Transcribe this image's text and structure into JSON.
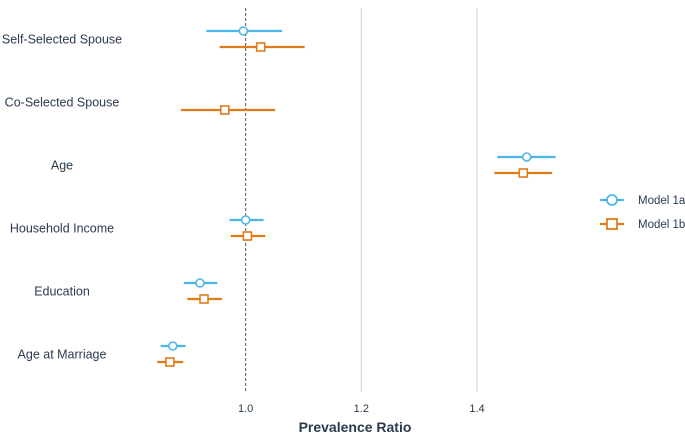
{
  "chart_data": {
    "type": "forest",
    "xlabel": "Prevalence Ratio",
    "xticks": [
      1.0,
      1.2,
      1.4
    ],
    "xtick_labels": [
      "1.0",
      "1.2",
      "1.4"
    ],
    "xlim": [
      0.8,
      1.63
    ],
    "reference_line": 1.0,
    "grid": "vertical major gridlines",
    "legend_placement": "right",
    "categories": [
      "Self-Selected Spouse",
      "Co-Selected Spouse",
      "Age",
      "Household Income",
      "Education",
      "Age at Marriage"
    ],
    "series": [
      {
        "name": "Model 1a",
        "color": "#4db6e8",
        "marker": "circle",
        "points": [
          {
            "category": "Self-Selected Spouse",
            "estimate": 0.996,
            "lower": 0.932,
            "upper": 1.063
          },
          {
            "category": "Co-Selected Spouse",
            "estimate": null,
            "lower": null,
            "upper": null
          },
          {
            "category": "Age",
            "estimate": 1.486,
            "lower": 1.435,
            "upper": 1.536
          },
          {
            "category": "Household Income",
            "estimate": 1.0,
            "lower": 0.972,
            "upper": 1.031
          },
          {
            "category": "Education",
            "estimate": 0.921,
            "lower": 0.893,
            "upper": 0.951
          },
          {
            "category": "Age at Marriage",
            "estimate": 0.874,
            "lower": 0.853,
            "upper": 0.896
          }
        ]
      },
      {
        "name": "Model 1b",
        "color": "#e07b1a",
        "marker": "square",
        "points": [
          {
            "category": "Self-Selected Spouse",
            "estimate": 1.026,
            "lower": 0.955,
            "upper": 1.102
          },
          {
            "category": "Co-Selected Spouse",
            "estimate": 0.964,
            "lower": 0.888,
            "upper": 1.051
          },
          {
            "category": "Age",
            "estimate": 1.48,
            "lower": 1.43,
            "upper": 1.53
          },
          {
            "category": "Household Income",
            "estimate": 1.003,
            "lower": 0.974,
            "upper": 1.034
          },
          {
            "category": "Education",
            "estimate": 0.928,
            "lower": 0.899,
            "upper": 0.959
          },
          {
            "category": "Age at Marriage",
            "estimate": 0.869,
            "lower": 0.847,
            "upper": 0.892
          }
        ]
      }
    ]
  }
}
